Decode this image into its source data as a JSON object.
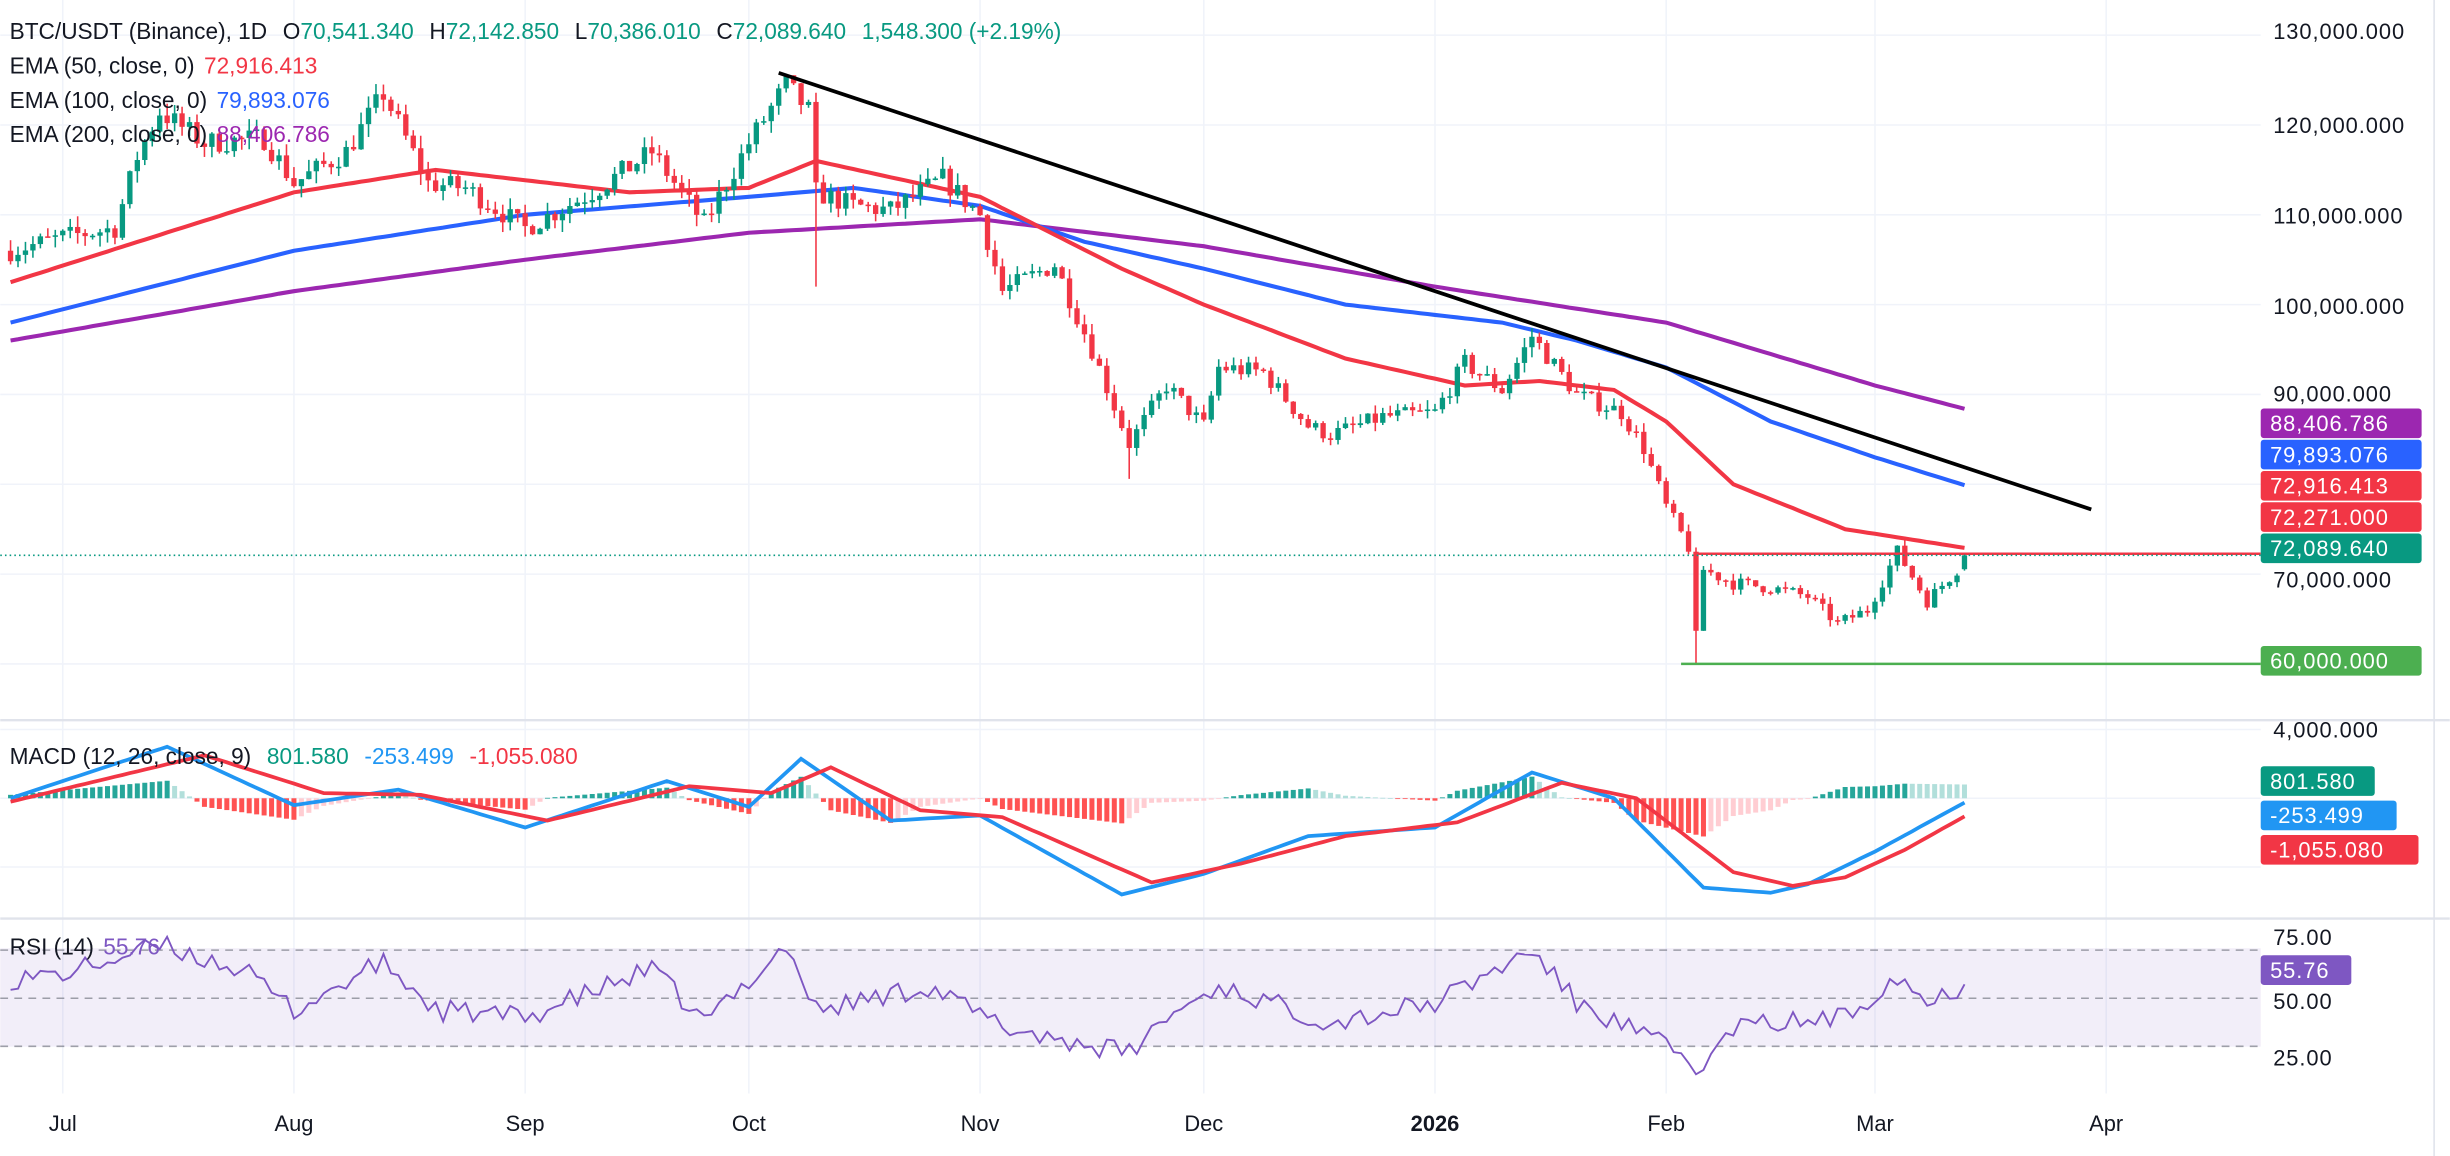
{
  "legend": {
    "symbol": "BTC/USDT (Binance), 1D",
    "o_label": "O",
    "o": "70,541.340",
    "h_label": "H",
    "h": "72,142.850",
    "l_label": "L",
    "l": "70,386.010",
    "c_label": "C",
    "c": "72,089.640",
    "change": "1,548.300 (+2.19%)",
    "ema50_label": "EMA (50, close, 0)",
    "ema50": "72,916.413",
    "ema100_label": "EMA (100, close, 0)",
    "ema100": "79,893.076",
    "ema200_label": "EMA (200, close, 0)",
    "ema200": "88,406.786",
    "macd_label": "MACD (12, 26, close, 9)",
    "macd_hist": "801.580",
    "macd_line": "-253.499",
    "macd_signal": "-1,055.080",
    "rsi_label": "RSI (14)",
    "rsi": "55.76"
  },
  "price_axis": [
    "130,000.000",
    "120,000.000",
    "110,000.000",
    "100,000.000",
    "90,000.000",
    "70,000.000"
  ],
  "macd_axis": [
    "4,000.000"
  ],
  "rsi_axis": [
    "75.00",
    "50.00",
    "25.00"
  ],
  "time_axis": [
    {
      "label": "Jul",
      "date": "2025-07-01"
    },
    {
      "label": "Aug",
      "date": "2025-08-01"
    },
    {
      "label": "Sep",
      "date": "2025-09-01"
    },
    {
      "label": "Oct",
      "date": "2025-10-01"
    },
    {
      "label": "Nov",
      "date": "2025-11-01"
    },
    {
      "label": "Dec",
      "date": "2025-12-01"
    },
    {
      "label": "2026",
      "date": "2026-01-01"
    },
    {
      "label": "Feb",
      "date": "2026-02-01"
    },
    {
      "label": "Mar",
      "date": "2026-03-01"
    },
    {
      "label": "Apr",
      "date": "2026-04-01"
    }
  ],
  "price_tags": [
    {
      "label": "88,406.786",
      "value": 88406.786,
      "color": "#9c27b0"
    },
    {
      "label": "79,893.076",
      "value": 79893.076,
      "color": "#2962ff"
    },
    {
      "label": "72,916.413",
      "value": 74700,
      "color": "#f23645"
    },
    {
      "label": "72,271.000",
      "value": 72271,
      "color": "#f23645"
    },
    {
      "label": "72,089.640",
      "value": 72089.64,
      "color": "#089981"
    },
    {
      "label": "60,000.000",
      "value": 60000,
      "color": "#4caf50"
    }
  ],
  "macd_tags": [
    {
      "label": "801.580",
      "value": 1000,
      "color": "#089981"
    },
    {
      "label": "-253.499",
      "value": -1050,
      "color": "#2196f3"
    },
    {
      "label": "-1,055.080",
      "value": -3100,
      "color": "#f23645"
    }
  ],
  "rsi_tag": {
    "label": "55.76",
    "value": 55.76,
    "color": "#7e57c2"
  },
  "colors": {
    "up": "#089981",
    "down": "#f23645",
    "ema50": "#f23645",
    "ema100": "#2962ff",
    "ema200": "#9c27b0",
    "macd": "#2196f3",
    "signal": "#f23645",
    "rsi": "#7e57c2"
  },
  "chart_data": {
    "type": "candlestick",
    "title": "BTC/USDT (Binance), 1D",
    "ylim": [
      55000,
      131000
    ],
    "last_candle": {
      "date": "2026-03-13",
      "open": 70541.34,
      "high": 72142.85,
      "low": 70386.01,
      "close": 72089.64
    },
    "close_keypoints": [
      [
        "2025-06-24",
        106000
      ],
      [
        "2025-07-01",
        107500
      ],
      [
        "2025-07-08",
        108500
      ],
      [
        "2025-07-11",
        116500
      ],
      [
        "2025-07-14",
        121500
      ],
      [
        "2025-07-20",
        118000
      ],
      [
        "2025-07-28",
        118500
      ],
      [
        "2025-08-01",
        113500
      ],
      [
        "2025-08-08",
        117000
      ],
      [
        "2025-08-13",
        123500
      ],
      [
        "2025-08-19",
        113500
      ],
      [
        "2025-08-24",
        113000
      ],
      [
        "2025-09-01",
        108500
      ],
      [
        "2025-09-10",
        112500
      ],
      [
        "2025-09-18",
        117000
      ],
      [
        "2025-09-25",
        109000
      ],
      [
        "2025-10-01",
        118000
      ],
      [
        "2025-10-06",
        124500
      ],
      [
        "2025-10-09",
        121500
      ],
      [
        "2025-10-10",
        112500
      ],
      [
        "2025-10-15",
        111000
      ],
      [
        "2025-10-20",
        110500
      ],
      [
        "2025-10-27",
        114000
      ],
      [
        "2025-11-01",
        110000
      ],
      [
        "2025-11-04",
        101500
      ],
      [
        "2025-11-11",
        104500
      ],
      [
        "2025-11-16",
        95000
      ],
      [
        "2025-11-21",
        84500
      ],
      [
        "2025-11-26",
        91000
      ],
      [
        "2025-12-01",
        86500
      ],
      [
        "2025-12-03",
        93000
      ],
      [
        "2025-12-09",
        92500
      ],
      [
        "2025-12-15",
        86500
      ],
      [
        "2025-12-18",
        85500
      ],
      [
        "2025-12-25",
        87500
      ],
      [
        "2026-01-01",
        88000
      ],
      [
        "2026-01-05",
        93500
      ],
      [
        "2026-01-10",
        90500
      ],
      [
        "2026-01-14",
        96500
      ],
      [
        "2026-01-20",
        90000
      ],
      [
        "2026-01-26",
        88000
      ],
      [
        "2026-01-29",
        84000
      ],
      [
        "2026-02-01",
        77500
      ],
      [
        "2026-02-04",
        73000
      ],
      [
        "2026-02-05",
        63000
      ],
      [
        "2026-02-06",
        70500
      ],
      [
        "2026-02-10",
        69000
      ],
      [
        "2026-02-15",
        68500
      ],
      [
        "2026-02-20",
        67500
      ],
      [
        "2026-02-24",
        64500
      ],
      [
        "2026-02-28",
        66000
      ],
      [
        "2026-03-04",
        72500
      ],
      [
        "2026-03-08",
        67000
      ],
      [
        "2026-03-12",
        70541.34
      ],
      [
        "2026-03-13",
        72089.64
      ]
    ],
    "ema50": [
      [
        "2025-06-24",
        102500
      ],
      [
        "2025-08-01",
        112500
      ],
      [
        "2025-08-20",
        115000
      ],
      [
        "2025-09-15",
        112500
      ],
      [
        "2025-10-01",
        113000
      ],
      [
        "2025-10-10",
        116000
      ],
      [
        "2025-11-01",
        112000
      ],
      [
        "2025-11-20",
        104000
      ],
      [
        "2025-12-01",
        100000
      ],
      [
        "2025-12-20",
        94000
      ],
      [
        "2026-01-05",
        91000
      ],
      [
        "2026-01-15",
        91500
      ],
      [
        "2026-01-25",
        90500
      ],
      [
        "2026-02-01",
        87000
      ],
      [
        "2026-02-10",
        80000
      ],
      [
        "2026-02-25",
        75000
      ],
      [
        "2026-03-13",
        72916.413
      ]
    ],
    "ema100": [
      [
        "2025-06-24",
        98000
      ],
      [
        "2025-08-01",
        106000
      ],
      [
        "2025-09-01",
        110000
      ],
      [
        "2025-10-01",
        112000
      ],
      [
        "2025-10-15",
        113000
      ],
      [
        "2025-11-01",
        111000
      ],
      [
        "2025-11-15",
        107000
      ],
      [
        "2025-12-01",
        104000
      ],
      [
        "2025-12-20",
        100000
      ],
      [
        "2026-01-10",
        98000
      ],
      [
        "2026-01-20",
        96000
      ],
      [
        "2026-02-01",
        93000
      ],
      [
        "2026-02-15",
        87000
      ],
      [
        "2026-03-01",
        83000
      ],
      [
        "2026-03-13",
        79893.076
      ]
    ],
    "ema200": [
      [
        "2025-06-24",
        96000
      ],
      [
        "2025-08-01",
        101500
      ],
      [
        "2025-09-01",
        105000
      ],
      [
        "2025-10-01",
        108000
      ],
      [
        "2025-11-01",
        109500
      ],
      [
        "2025-12-01",
        106500
      ],
      [
        "2026-01-01",
        102000
      ],
      [
        "2026-02-01",
        98000
      ],
      [
        "2026-03-01",
        91000
      ],
      [
        "2026-03-13",
        88406.786
      ]
    ],
    "trendline": [
      [
        "2025-10-05",
        125800
      ],
      [
        "2026-03-30",
        77200
      ]
    ],
    "resistance": {
      "from": "2026-02-05",
      "value": 72271
    },
    "support": {
      "from": "2026-02-03",
      "value": 60000
    },
    "macd": {
      "ylim": [
        -6000,
        4500
      ],
      "macd_keypoints": [
        [
          "2025-06-24",
          0
        ],
        [
          "2025-07-15",
          3000
        ],
        [
          "2025-08-01",
          -400
        ],
        [
          "2025-08-15",
          500
        ],
        [
          "2025-09-01",
          -1700
        ],
        [
          "2025-09-20",
          1000
        ],
        [
          "2025-10-01",
          -500
        ],
        [
          "2025-10-08",
          2300
        ],
        [
          "2025-10-20",
          -1300
        ],
        [
          "2025-11-01",
          -1000
        ],
        [
          "2025-11-20",
          -5600
        ],
        [
          "2025-12-01",
          -4400
        ],
        [
          "2025-12-15",
          -2200
        ],
        [
          "2026-01-01",
          -1700
        ],
        [
          "2026-01-14",
          1500
        ],
        [
          "2026-01-25",
          0
        ],
        [
          "2026-02-06",
          -5200
        ],
        [
          "2026-02-15",
          -5500
        ],
        [
          "2026-02-20",
          -5000
        ],
        [
          "2026-03-01",
          -3100
        ],
        [
          "2026-03-13",
          -253.499
        ]
      ],
      "signal_keypoints": [
        [
          "2025-06-24",
          -200
        ],
        [
          "2025-07-20",
          2500
        ],
        [
          "2025-08-05",
          300
        ],
        [
          "2025-08-18",
          200
        ],
        [
          "2025-09-04",
          -1300
        ],
        [
          "2025-09-23",
          700
        ],
        [
          "2025-10-04",
          300
        ],
        [
          "2025-10-12",
          1800
        ],
        [
          "2025-10-24",
          -700
        ],
        [
          "2025-11-04",
          -1100
        ],
        [
          "2025-11-24",
          -4900
        ],
        [
          "2025-12-06",
          -3800
        ],
        [
          "2025-12-20",
          -2200
        ],
        [
          "2026-01-04",
          -1400
        ],
        [
          "2026-01-18",
          900
        ],
        [
          "2026-01-28",
          0
        ],
        [
          "2026-02-10",
          -4300
        ],
        [
          "2026-02-18",
          -5100
        ],
        [
          "2026-02-25",
          -4600
        ],
        [
          "2026-03-05",
          -3000
        ],
        [
          "2026-03-13",
          -1055.08
        ]
      ]
    },
    "rsi": {
      "ylim": [
        15,
        80
      ],
      "bands": [
        30,
        50,
        70
      ],
      "keypoints": [
        [
          "2025-06-24",
          58
        ],
        [
          "2025-07-01",
          60
        ],
        [
          "2025-07-14",
          72
        ],
        [
          "2025-07-25",
          62
        ],
        [
          "2025-08-01",
          45
        ],
        [
          "2025-08-13",
          65
        ],
        [
          "2025-08-20",
          45
        ],
        [
          "2025-09-01",
          42
        ],
        [
          "2025-09-18",
          62
        ],
        [
          "2025-09-25",
          40
        ],
        [
          "2025-10-06",
          72
        ],
        [
          "2025-10-10",
          45
        ],
        [
          "2025-10-25",
          55
        ],
        [
          "2025-11-04",
          38
        ],
        [
          "2025-11-21",
          27
        ],
        [
          "2025-11-26",
          42
        ],
        [
          "2025-12-03",
          55
        ],
        [
          "2025-12-18",
          40
        ],
        [
          "2026-01-01",
          48
        ],
        [
          "2026-01-14",
          70
        ],
        [
          "2026-01-20",
          48
        ],
        [
          "2026-02-01",
          30
        ],
        [
          "2026-02-06",
          20
        ],
        [
          "2026-02-10",
          38
        ],
        [
          "2026-02-25",
          42
        ],
        [
          "2026-03-04",
          60
        ],
        [
          "2026-03-08",
          48
        ],
        [
          "2026-03-13",
          55.76
        ]
      ]
    }
  }
}
